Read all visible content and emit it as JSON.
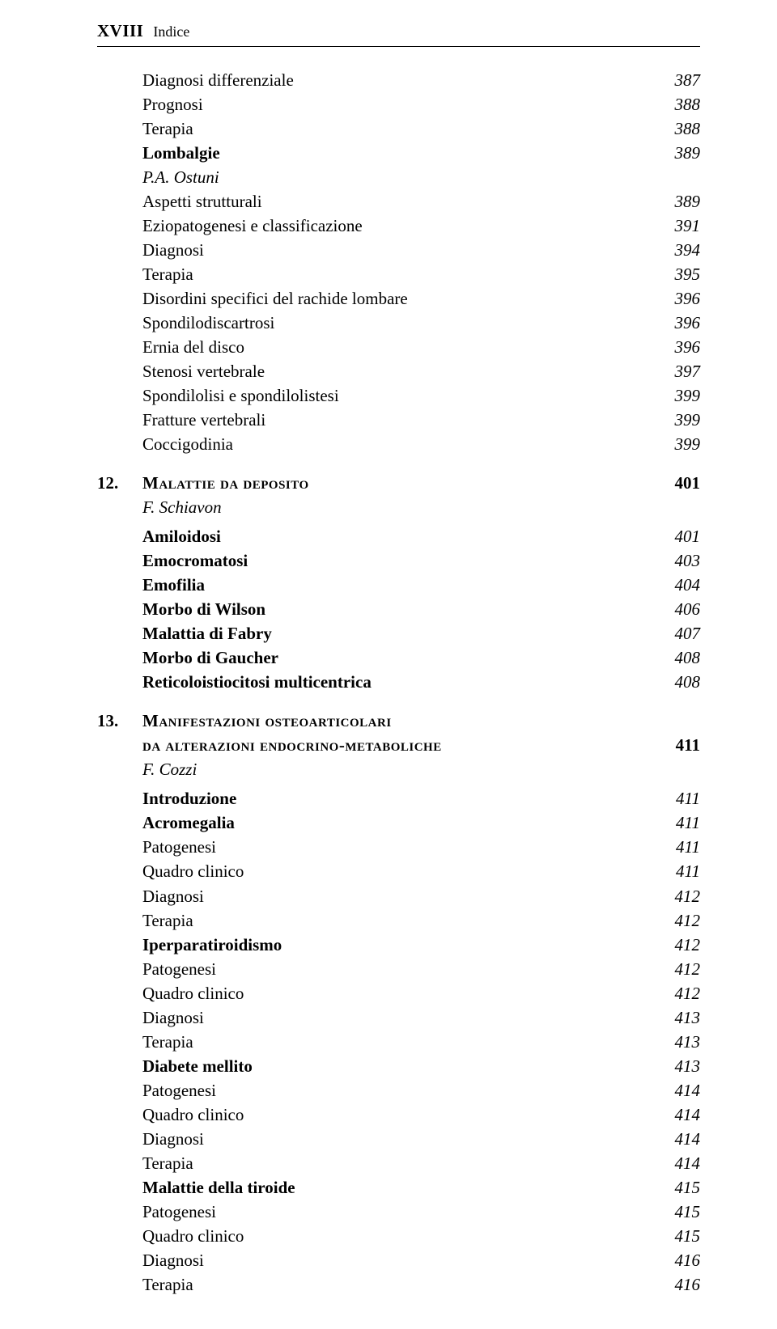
{
  "header": {
    "roman": "XVIII",
    "indice": "Indice"
  },
  "block_a": [
    {
      "label": "Diagnosi differenziale",
      "page": "387",
      "bold": false
    },
    {
      "label": "Prognosi",
      "page": "388",
      "bold": false
    },
    {
      "label": "Terapia",
      "page": "388",
      "bold": false
    },
    {
      "label": "Lombalgie",
      "page": "389",
      "bold": true
    }
  ],
  "author_a": "P.A. Ostuni",
  "block_b": [
    {
      "label": "Aspetti strutturali",
      "page": "389",
      "bold": false
    },
    {
      "label": "Eziopatogenesi e classificazione",
      "page": "391",
      "bold": false
    },
    {
      "label": "Diagnosi",
      "page": "394",
      "bold": false
    },
    {
      "label": "Terapia",
      "page": "395",
      "bold": false
    },
    {
      "label": "Disordini specifici del rachide lombare",
      "page": "396",
      "bold": false
    },
    {
      "label": "Spondilodiscartrosi",
      "page": "396",
      "bold": false
    },
    {
      "label": "Ernia del disco",
      "page": "396",
      "bold": false
    },
    {
      "label": "Stenosi vertebrale",
      "page": "397",
      "bold": false
    },
    {
      "label": "Spondilolisi e spondilolistesi",
      "page": "399",
      "bold": false
    },
    {
      "label": "Fratture vertebrali",
      "page": "399",
      "bold": false
    },
    {
      "label": "Coccigodinia",
      "page": "399",
      "bold": false
    }
  ],
  "section12": {
    "num": "12.",
    "title_first": "M",
    "title_rest": "alattie da deposito",
    "page": "401",
    "author": "F. Schiavon"
  },
  "block_c": [
    {
      "label": "Amiloidosi",
      "page": "401",
      "bold": true
    },
    {
      "label": "Emocromatosi",
      "page": "403",
      "bold": true
    },
    {
      "label": "Emofilia",
      "page": "404",
      "bold": true
    },
    {
      "label": "Morbo di Wilson",
      "page": "406",
      "bold": true
    },
    {
      "label": "Malattia di Fabry",
      "page": "407",
      "bold": true
    },
    {
      "label": "Morbo di Gaucher",
      "page": "408",
      "bold": true
    },
    {
      "label": "Reticoloistiocitosi multicentrica",
      "page": "408",
      "bold": true
    }
  ],
  "section13": {
    "num": "13.",
    "line1_first": "M",
    "line1_rest": "anifestazioni osteoarticolari",
    "line2": "da alterazioni endocrino-metaboliche",
    "page": "411",
    "author": "F. Cozzi"
  },
  "block_d": [
    {
      "label": "Introduzione",
      "page": "411",
      "bold": true
    },
    {
      "label": "Acromegalia",
      "page": "411",
      "bold": true
    },
    {
      "label": "Patogenesi",
      "page": "411",
      "bold": false
    },
    {
      "label": "Quadro clinico",
      "page": "411",
      "bold": false
    },
    {
      "label": "Diagnosi",
      "page": "412",
      "bold": false
    },
    {
      "label": "Terapia",
      "page": "412",
      "bold": false
    },
    {
      "label": "Iperparatiroidismo",
      "page": "412",
      "bold": true
    },
    {
      "label": "Patogenesi",
      "page": "412",
      "bold": false
    },
    {
      "label": "Quadro clinico",
      "page": "412",
      "bold": false
    },
    {
      "label": "Diagnosi",
      "page": "413",
      "bold": false
    },
    {
      "label": "Terapia",
      "page": "413",
      "bold": false
    },
    {
      "label": "Diabete mellito",
      "page": "413",
      "bold": true
    },
    {
      "label": "Patogenesi",
      "page": "414",
      "bold": false
    },
    {
      "label": "Quadro clinico",
      "page": "414",
      "bold": false
    },
    {
      "label": "Diagnosi",
      "page": "414",
      "bold": false
    },
    {
      "label": "Terapia",
      "page": "414",
      "bold": false
    },
    {
      "label": "Malattie della tiroide",
      "page": "415",
      "bold": true
    },
    {
      "label": "Patogenesi",
      "page": "415",
      "bold": false
    },
    {
      "label": "Quadro clinico",
      "page": "415",
      "bold": false
    },
    {
      "label": "Diagnosi",
      "page": "416",
      "bold": false
    },
    {
      "label": "Terapia",
      "page": "416",
      "bold": false
    }
  ]
}
